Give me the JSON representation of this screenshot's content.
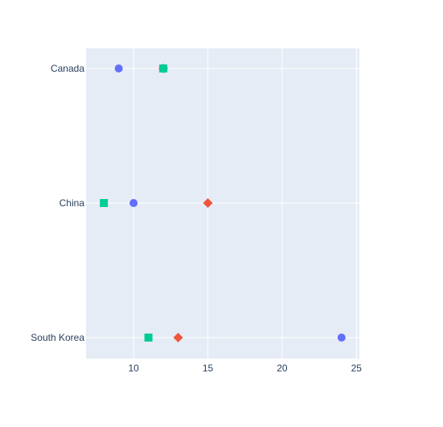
{
  "chart_data": {
    "type": "scatter",
    "title": "",
    "xlabel": "",
    "ylabel": "",
    "xlim": [
      6.8,
      25.2
    ],
    "x_ticks": [
      10,
      15,
      20,
      25
    ],
    "categories": [
      "Canada",
      "China",
      "South Korea"
    ],
    "grid": true,
    "legend": "none",
    "colors": {
      "plot_bg": "#e5ecf6",
      "grid": "#ffffff",
      "text": "#2a3f5f"
    },
    "series": [
      {
        "marker": "circle",
        "color": "#636efa",
        "values": [
          {
            "category": "Canada",
            "x": 9
          },
          {
            "category": "China",
            "x": 10
          },
          {
            "category": "South Korea",
            "x": 24
          }
        ]
      },
      {
        "marker": "diamond",
        "color": "#ef553b",
        "values": [
          {
            "category": "Canada",
            "x": 12
          },
          {
            "category": "China",
            "x": 15
          },
          {
            "category": "South Korea",
            "x": 13
          }
        ]
      },
      {
        "marker": "square",
        "color": "#00cc96",
        "values": [
          {
            "category": "Canada",
            "x": 12
          },
          {
            "category": "China",
            "x": 8
          },
          {
            "category": "South Korea",
            "x": 11
          }
        ]
      }
    ]
  }
}
